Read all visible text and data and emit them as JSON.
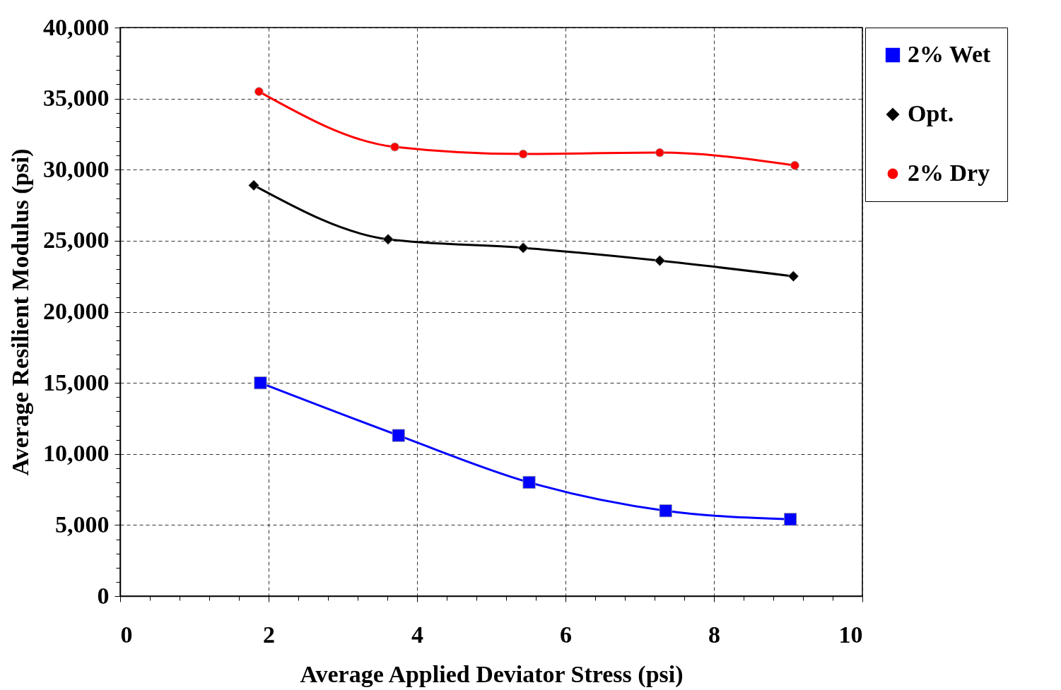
{
  "chart_data": {
    "type": "line",
    "xlabel": "Average Applied Deviator Stress (psi)",
    "ylabel": "Average Resilient Modulus (psi)",
    "xlim": [
      0,
      10
    ],
    "ylim": [
      0,
      40000
    ],
    "xticks": [
      0,
      {
        "value": 0.4,
        "label": null
      },
      {
        "value": 0.8,
        "label": null
      },
      {
        "value": 1.2,
        "label": null
      },
      {
        "value": 1.6,
        "label": null
      },
      2,
      {
        "value": 2.4,
        "label": null
      },
      {
        "value": 2.8,
        "label": null
      },
      {
        "value": 3.2,
        "label": null
      },
      {
        "value": 3.6,
        "label": null
      },
      4,
      {
        "value": 4.4,
        "label": null
      },
      {
        "value": 4.8,
        "label": null
      },
      {
        "value": 5.2,
        "label": null
      },
      {
        "value": 5.6,
        "label": null
      },
      6,
      {
        "value": 6.4,
        "label": null
      },
      {
        "value": 6.8,
        "label": null
      },
      {
        "value": 7.2,
        "label": null
      },
      {
        "value": 7.6,
        "label": null
      },
      8,
      {
        "value": 8.4,
        "label": null
      },
      {
        "value": 8.8,
        "label": null
      },
      {
        "value": 9.2,
        "label": null
      },
      {
        "value": 9.6,
        "label": null
      },
      10
    ],
    "yticks": [
      0,
      {
        "value": 1000,
        "label": null
      },
      {
        "value": 2000,
        "label": null
      },
      {
        "value": 3000,
        "label": null
      },
      {
        "value": 4000,
        "label": null
      },
      {
        "value": 5000,
        "label": "5,000"
      },
      {
        "value": 6000,
        "label": null
      },
      {
        "value": 7000,
        "label": null
      },
      {
        "value": 8000,
        "label": null
      },
      {
        "value": 9000,
        "label": null
      },
      {
        "value": 10000,
        "label": "10,000"
      },
      {
        "value": 11000,
        "label": null
      },
      {
        "value": 12000,
        "label": null
      },
      {
        "value": 13000,
        "label": null
      },
      {
        "value": 14000,
        "label": null
      },
      {
        "value": 15000,
        "label": "15,000"
      },
      {
        "value": 16000,
        "label": null
      },
      {
        "value": 17000,
        "label": null
      },
      {
        "value": 18000,
        "label": null
      },
      {
        "value": 19000,
        "label": null
      },
      {
        "value": 20000,
        "label": "20,000"
      },
      {
        "value": 21000,
        "label": null
      },
      {
        "value": 22000,
        "label": null
      },
      {
        "value": 23000,
        "label": null
      },
      {
        "value": 24000,
        "label": null
      },
      {
        "value": 25000,
        "label": "25,000"
      },
      {
        "value": 26000,
        "label": null
      },
      {
        "value": 27000,
        "label": null
      },
      {
        "value": 28000,
        "label": null
      },
      {
        "value": 29000,
        "label": null
      },
      {
        "value": 30000,
        "label": "30,000"
      },
      {
        "value": 31000,
        "label": null
      },
      {
        "value": 32000,
        "label": null
      },
      {
        "value": 33000,
        "label": null
      },
      {
        "value": 34000,
        "label": null
      },
      {
        "value": 35000,
        "label": "35,000"
      },
      {
        "value": 36000,
        "label": null
      },
      {
        "value": 37000,
        "label": null
      },
      {
        "value": 38000,
        "label": null
      },
      {
        "value": 39000,
        "label": null
      },
      {
        "value": 40000,
        "label": "40,000"
      }
    ],
    "grid": true,
    "legend": "right",
    "line_style": "solid",
    "series": [
      {
        "name": "2% Wet",
        "color": "#0000ff",
        "marker": "square",
        "x": [
          1.89,
          3.75,
          5.51,
          7.35,
          9.03
        ],
        "values": [
          15000,
          11300,
          8000,
          6000,
          5400
        ]
      },
      {
        "name": "Opt.",
        "color": "#000000",
        "marker": "diamond",
        "x": [
          1.8,
          3.61,
          5.43,
          7.27,
          9.07
        ],
        "values": [
          28900,
          25100,
          24500,
          23600,
          22500
        ]
      },
      {
        "name": "2% Dry",
        "color": "#ff0000",
        "marker": "circle",
        "x": [
          1.87,
          3.7,
          5.43,
          7.27,
          9.09
        ],
        "values": [
          35500,
          31600,
          31100,
          31200,
          30300
        ]
      }
    ]
  }
}
